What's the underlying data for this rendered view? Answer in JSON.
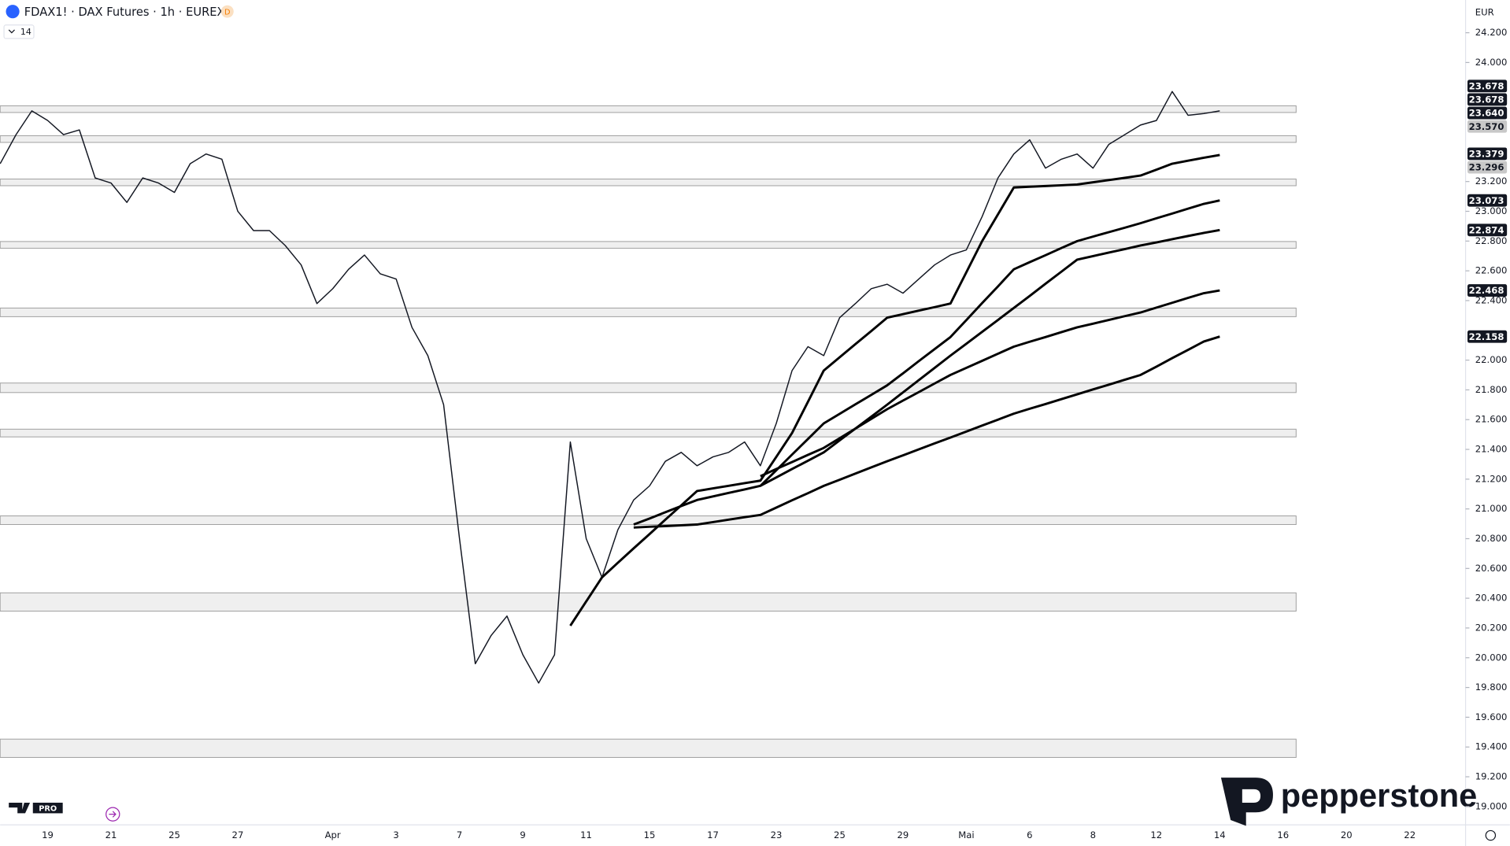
{
  "header": {
    "symbol": "FDAX1! · DAX Futures · 1h · EUREX",
    "badge": "D",
    "indicator_length": 14
  },
  "chart_data": {
    "type": "line",
    "currency": "EUR",
    "categories": [
      null,
      null,
      null,
      "19",
      null,
      null,
      null,
      "21",
      null,
      null,
      null,
      "25",
      null,
      null,
      null,
      "27",
      null,
      null,
      null,
      null,
      null,
      "Apr",
      null,
      null,
      null,
      "3",
      null,
      null,
      null,
      "7",
      null,
      null,
      null,
      "9",
      null,
      null,
      null,
      "11",
      null,
      null,
      null,
      "15",
      null,
      null,
      null,
      "17",
      null,
      null,
      null,
      "23",
      null,
      null,
      null,
      "25",
      null,
      null,
      null,
      "29",
      null,
      null,
      null,
      "Mai",
      null,
      null,
      null,
      "6",
      null,
      null,
      null,
      "8",
      null,
      null,
      null,
      "12",
      null,
      null,
      null,
      "14",
      null,
      null,
      null,
      "16",
      null,
      null,
      null,
      "20",
      null,
      null,
      null,
      "22",
      null,
      null,
      null
    ],
    "series": [
      {
        "color": "#131722",
        "width": 1.2,
        "values": [
          23320,
          23515,
          23675,
          23610,
          23515,
          23547,
          23224,
          23190,
          23060,
          23224,
          23190,
          23127,
          23320,
          23385,
          23350,
          23000,
          22870,
          22870,
          22770,
          22640,
          22380,
          22480,
          22610,
          22706,
          22580,
          22545,
          22220,
          22030,
          21700,
          20800,
          19960,
          20150,
          20280,
          20020,
          19830,
          20020,
          21450,
          20800,
          20540,
          20860,
          21060,
          21155,
          21320,
          21380,
          21290,
          21350,
          21380,
          21450,
          21290,
          21575,
          21930,
          22090,
          22030,
          22285,
          22380,
          22480,
          22510,
          22450,
          22545,
          22640,
          22706,
          22740,
          22965,
          23225,
          23385,
          23480,
          23290,
          23350,
          23385,
          23290,
          23450,
          23515,
          23580,
          23610,
          23805,
          23645,
          23657,
          23675,
          null,
          null,
          null,
          null,
          null,
          null,
          null,
          null,
          null,
          null,
          null,
          null,
          null,
          null,
          null
        ]
      },
      {
        "color": "#000000",
        "width": 2.4,
        "values": [
          null,
          null,
          null,
          null,
          null,
          null,
          null,
          null,
          null,
          null,
          null,
          null,
          null,
          null,
          null,
          null,
          null,
          null,
          null,
          null,
          null,
          null,
          null,
          null,
          null,
          null,
          null,
          null,
          null,
          null,
          null,
          null,
          null,
          null,
          null,
          null,
          20215,
          20378,
          20540,
          20638,
          20735,
          20831,
          20928,
          21024,
          21120,
          21138,
          21155,
          21173,
          21190,
          21350,
          21510,
          21720,
          21930,
          22019,
          22108,
          22196,
          22285,
          22309,
          22333,
          22356,
          22380,
          22590,
          22800,
          22980,
          23160,
          23165,
          23170,
          23175,
          23180,
          23195,
          23210,
          23225,
          23240,
          23280,
          23320,
          23340,
          23360,
          23379,
          null,
          null,
          null,
          null,
          null,
          null,
          null,
          null,
          null,
          null,
          null,
          null,
          null,
          null,
          null
        ]
      },
      {
        "color": "#000000",
        "width": 2.4,
        "values": [
          null,
          null,
          null,
          null,
          null,
          null,
          null,
          null,
          null,
          null,
          null,
          null,
          null,
          null,
          null,
          null,
          null,
          null,
          null,
          null,
          null,
          null,
          null,
          null,
          null,
          null,
          null,
          null,
          null,
          null,
          null,
          null,
          null,
          null,
          null,
          null,
          null,
          null,
          null,
          null,
          20895,
          20936,
          20978,
          21019,
          21060,
          21084,
          21108,
          21131,
          21155,
          21260,
          21365,
          21470,
          21575,
          21639,
          21703,
          21766,
          21830,
          21911,
          21993,
          22074,
          22155,
          22269,
          22383,
          22496,
          22610,
          22658,
          22705,
          22753,
          22800,
          22830,
          22860,
          22890,
          22920,
          22953,
          22985,
          23018,
          23050,
          23073,
          null,
          null,
          null,
          null,
          null,
          null,
          null,
          null,
          null,
          null,
          null,
          null,
          null,
          null,
          null
        ]
      },
      {
        "color": "#000000",
        "width": 2.4,
        "values": [
          null,
          null,
          null,
          null,
          null,
          null,
          null,
          null,
          null,
          null,
          null,
          null,
          null,
          null,
          null,
          null,
          null,
          null,
          null,
          null,
          null,
          null,
          null,
          null,
          null,
          null,
          null,
          null,
          null,
          null,
          null,
          null,
          null,
          null,
          null,
          null,
          null,
          null,
          null,
          null,
          null,
          null,
          null,
          null,
          null,
          null,
          null,
          null,
          21155,
          21211,
          21268,
          21324,
          21380,
          21460,
          21540,
          21620,
          21700,
          21783,
          21865,
          21948,
          22030,
          22110,
          22190,
          22270,
          22350,
          22431,
          22513,
          22594,
          22675,
          22699,
          22723,
          22746,
          22770,
          22791,
          22813,
          22834,
          22855,
          22874,
          null,
          null,
          null,
          null,
          null,
          null,
          null,
          null,
          null,
          null,
          null,
          null,
          null,
          null,
          null
        ]
      },
      {
        "color": "#000000",
        "width": 2.4,
        "values": [
          null,
          null,
          null,
          null,
          null,
          null,
          null,
          null,
          null,
          null,
          null,
          null,
          null,
          null,
          null,
          null,
          null,
          null,
          null,
          null,
          null,
          null,
          null,
          null,
          null,
          null,
          null,
          null,
          null,
          null,
          null,
          null,
          null,
          null,
          null,
          null,
          null,
          null,
          null,
          null,
          null,
          null,
          null,
          null,
          null,
          null,
          null,
          null,
          21220,
          21268,
          21315,
          21363,
          21410,
          21475,
          21540,
          21605,
          21670,
          21728,
          21785,
          21843,
          21900,
          21948,
          21995,
          22043,
          22090,
          22123,
          22155,
          22188,
          22220,
          22245,
          22270,
          22295,
          22320,
          22353,
          22385,
          22418,
          22450,
          22468,
          null,
          null,
          null,
          null,
          null,
          null,
          null,
          null,
          null,
          null,
          null,
          null,
          null,
          null,
          null
        ]
      },
      {
        "color": "#000000",
        "width": 2.4,
        "values": [
          null,
          null,
          null,
          null,
          null,
          null,
          null,
          null,
          null,
          null,
          null,
          null,
          null,
          null,
          null,
          null,
          null,
          null,
          null,
          null,
          null,
          null,
          null,
          null,
          null,
          null,
          null,
          null,
          null,
          null,
          null,
          null,
          null,
          null,
          null,
          null,
          null,
          null,
          null,
          null,
          20875,
          20880,
          20885,
          20890,
          20895,
          20911,
          20928,
          20944,
          20960,
          21009,
          21058,
          21106,
          21155,
          21196,
          21238,
          21279,
          21320,
          21360,
          21400,
          21440,
          21480,
          21520,
          21560,
          21600,
          21640,
          21673,
          21705,
          21738,
          21770,
          21803,
          21835,
          21868,
          21900,
          21956,
          22013,
          22069,
          22125,
          22158,
          null,
          null,
          null,
          null,
          null,
          null,
          null,
          null,
          null,
          null,
          null,
          null,
          null,
          null,
          null
        ]
      }
    ],
    "ylim": [
      18890,
      24420
    ],
    "yticks": [
      {
        "value": 24200,
        "label": "24.200"
      },
      {
        "value": 24000,
        "label": "24.000"
      },
      {
        "value": 23200,
        "label": "23.200"
      },
      {
        "value": 23000,
        "label": "23.000"
      },
      {
        "value": 22800,
        "label": "22.800"
      },
      {
        "value": 22600,
        "label": "22.600"
      },
      {
        "value": 22400,
        "label": "22.400"
      },
      {
        "value": 22000,
        "label": "22.000"
      },
      {
        "value": 21800,
        "label": "21.800"
      },
      {
        "value": 21600,
        "label": "21.600"
      },
      {
        "value": 21400,
        "label": "21.400"
      },
      {
        "value": 21200,
        "label": "21.200"
      },
      {
        "value": 21000,
        "label": "21.000"
      },
      {
        "value": 20800,
        "label": "20.800"
      },
      {
        "value": 20600,
        "label": "20.600"
      },
      {
        "value": 20400,
        "label": "20.400"
      },
      {
        "value": 20200,
        "label": "20.200"
      },
      {
        "value": 20000,
        "label": "20.000"
      },
      {
        "value": 19800,
        "label": "19.800"
      },
      {
        "value": 19600,
        "label": "19.600"
      },
      {
        "value": 19400,
        "label": "19.400"
      },
      {
        "value": 19200,
        "label": "19.200"
      },
      {
        "value": 19000,
        "label": "19.000"
      }
    ],
    "grid": false,
    "zones": [
      [
        23664,
        23709
      ],
      [
        23463,
        23508
      ],
      [
        23172,
        23217
      ],
      [
        22752,
        22797
      ],
      [
        22292,
        22350
      ],
      [
        21782,
        21846
      ],
      [
        21484,
        21536
      ],
      [
        20895,
        20953
      ],
      [
        20313,
        20436
      ],
      [
        19330,
        19453
      ]
    ],
    "price_labels": [
      {
        "value": 23678,
        "label": "23.678",
        "color": "#131722"
      },
      {
        "value": 23678,
        "label": "23.678",
        "color": "#131722"
      },
      {
        "value": 23640,
        "label": "23.640",
        "color": "#131722"
      },
      {
        "value": 23570,
        "label": "23.570",
        "color": "#c8c8c8"
      },
      {
        "value": 23379,
        "label": "23.379",
        "color": "#131722"
      },
      {
        "value": 23296,
        "label": "23.296",
        "color": "#c8c8c8"
      },
      {
        "value": 23073,
        "label": "23.073",
        "color": "#131722"
      },
      {
        "value": 22874,
        "label": "22.874",
        "color": "#131722"
      },
      {
        "value": 22468,
        "label": "22.468",
        "color": "#131722"
      },
      {
        "value": 22158,
        "label": "22.158",
        "color": "#131722"
      }
    ]
  },
  "branding": {
    "logo": "pepperstone",
    "tv_badge": "PRO"
  }
}
